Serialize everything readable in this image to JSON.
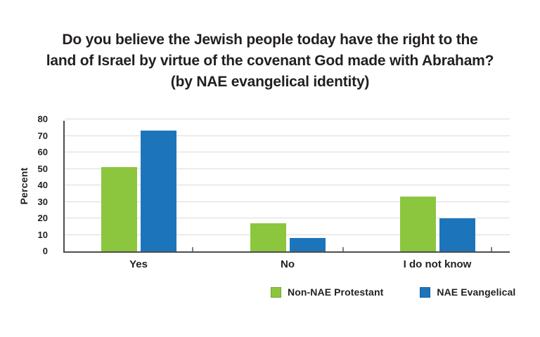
{
  "title": {
    "lines": [
      "Do you believe the Jewish people today have the right to the",
      "land of Israel by virtue of the covenant God made with Abraham?",
      "(by NAE evangelical identity)"
    ]
  },
  "chart_data": {
    "type": "bar",
    "categories": [
      "Yes",
      "No",
      "I do not know"
    ],
    "series": [
      {
        "name": "Non-NAE Protestant",
        "color": "#8CC63F",
        "values": [
          51,
          17,
          33
        ]
      },
      {
        "name": "NAE Evangelical",
        "color": "#1C75BB",
        "values": [
          73,
          8,
          20
        ]
      }
    ],
    "title": "Do you believe the Jewish people today have the right to the land of Israel by virtue of the covenant God made with Abraham? (by NAE evangelical identity)",
    "xlabel": "",
    "ylabel": "Percent",
    "ylim": [
      0,
      80
    ],
    "yticks": [
      0,
      10,
      20,
      30,
      40,
      50,
      60,
      70,
      80
    ],
    "grid": "horizontal",
    "legend_position": "bottom-right"
  },
  "colors": {
    "text": "#231F20",
    "axis": "#4D4D4D",
    "gridline": "#DBDBDB",
    "background": "#FFFFFF"
  }
}
